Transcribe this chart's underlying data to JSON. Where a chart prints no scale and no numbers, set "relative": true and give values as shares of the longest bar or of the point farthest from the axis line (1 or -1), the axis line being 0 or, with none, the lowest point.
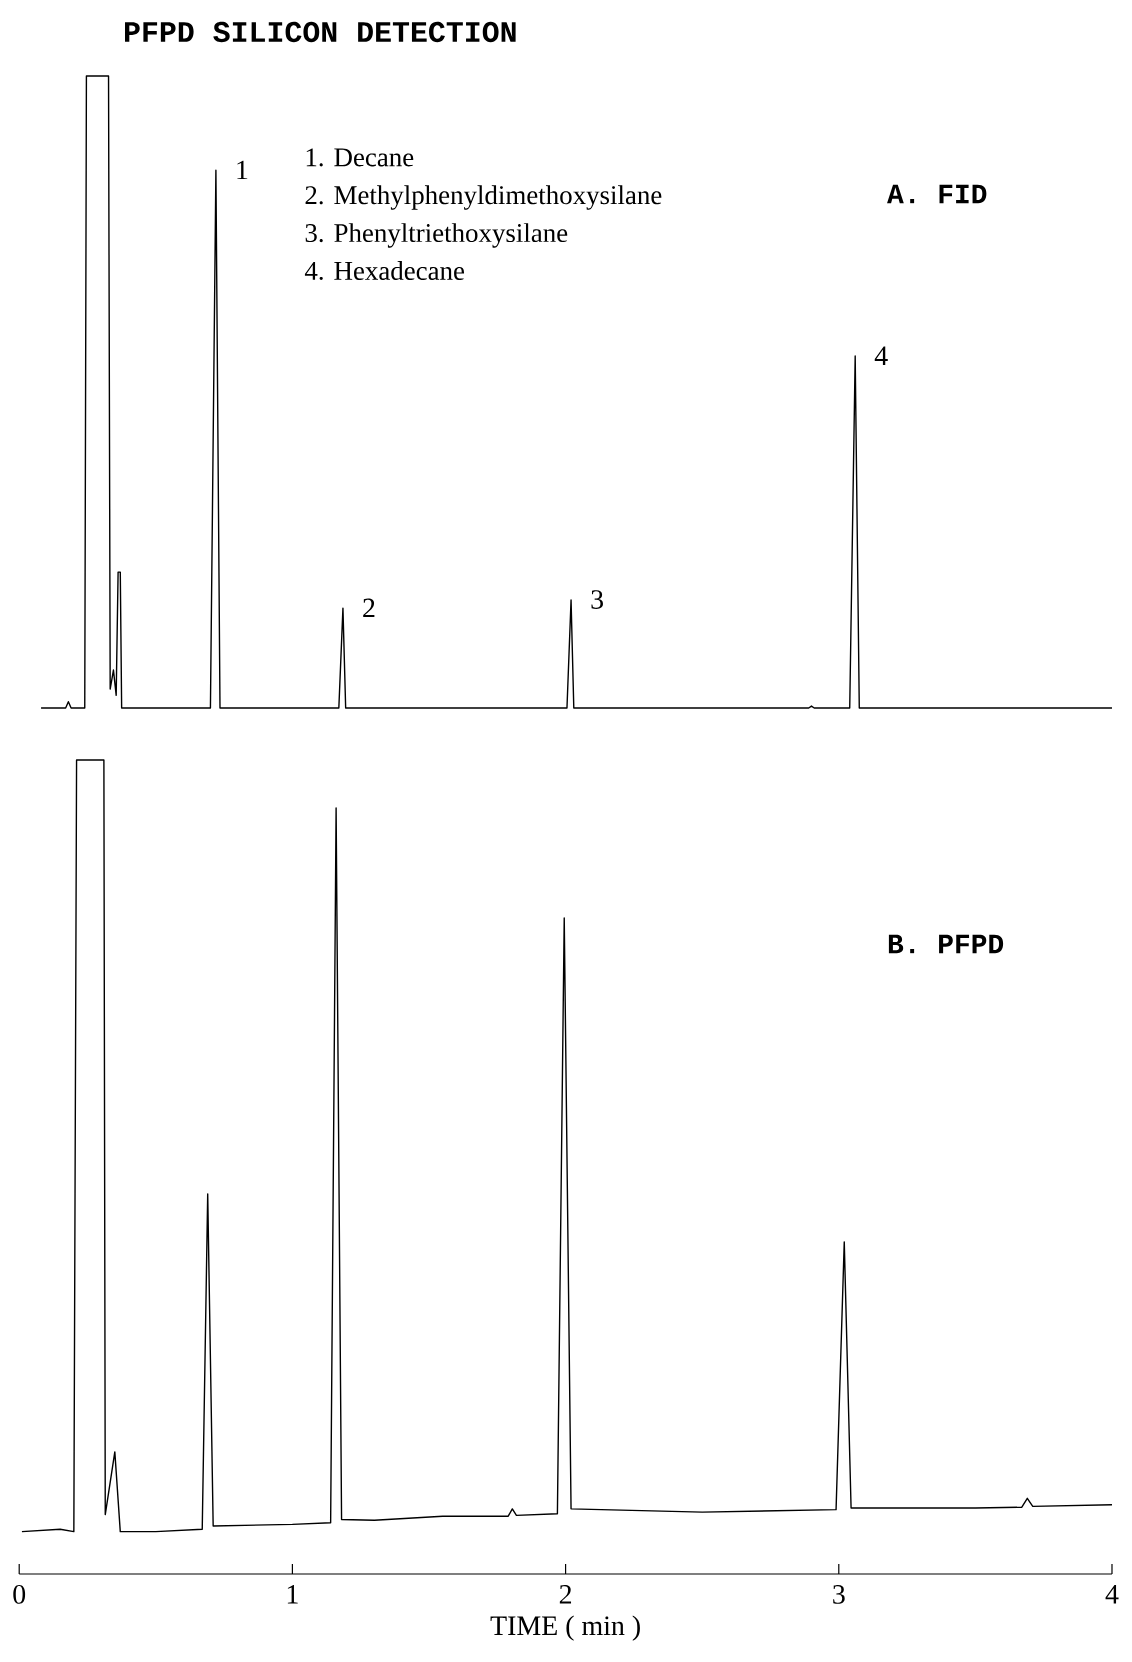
{
  "chart_data": [
    {
      "type": "line",
      "title": "PFPD SILICON DETECTION",
      "subtitle": "A. FID",
      "relative": true,
      "xlim": [
        0,
        4
      ],
      "tick_labels": false,
      "color": "#000000",
      "x": [
        0.08,
        0.17,
        0.18,
        0.19,
        0.24,
        0.246,
        0.327,
        0.333,
        0.345,
        0.355,
        0.362,
        0.37,
        0.375,
        0.7,
        0.72,
        0.735,
        1.17,
        1.185,
        1.195,
        2.005,
        2.02,
        2.03,
        2.89,
        2.9,
        2.91,
        3.04,
        3.06,
        3.075,
        4.0
      ],
      "values": [
        0,
        0,
        0.01,
        0,
        0,
        1,
        1,
        0.03,
        0.06,
        0.02,
        0.215,
        0.215,
        0,
        0,
        0.851,
        0,
        0,
        0.158,
        0,
        0,
        0.171,
        0,
        0,
        0.003,
        0,
        0,
        0.557,
        0,
        0
      ],
      "annotations": [
        "1. Decane",
        "2. Methylphenyldimethoxysilane",
        "3. Phenyltriethoxysilane",
        "4. Hexadecane",
        {
          "text": "1",
          "x": 0.72,
          "y": 0.851
        },
        {
          "text": "2",
          "x": 1.185,
          "y": 0.158
        },
        {
          "text": "3",
          "x": 2.02,
          "y": 0.171
        },
        {
          "text": "4",
          "x": 3.06,
          "y": 0.557
        }
      ]
    },
    {
      "type": "line",
      "title": "B. PFPD",
      "xlabel": "TIME  ( min )",
      "relative": true,
      "xlim": [
        0,
        4
      ],
      "xticks": [
        0,
        1,
        2,
        3,
        4
      ],
      "tick_labels": "x",
      "color": "#000000",
      "x": [
        0.01,
        0.15,
        0.2,
        0.21,
        0.31,
        0.315,
        0.35,
        0.37,
        0.5,
        0.67,
        0.69,
        0.71,
        1.0,
        1.14,
        1.16,
        1.18,
        1.3,
        1.55,
        1.79,
        1.805,
        1.82,
        1.97,
        1.995,
        2.02,
        2.5,
        2.99,
        3.02,
        3.045,
        3.5,
        3.67,
        3.69,
        3.71,
        4.0
      ],
      "values": [
        0.052,
        0.055,
        0.052,
        1,
        1,
        0.073,
        0.15,
        0.052,
        0.052,
        0.055,
        0.467,
        0.059,
        0.061,
        0.063,
        0.941,
        0.067,
        0.066,
        0.071,
        0.071,
        0.08,
        0.072,
        0.074,
        0.806,
        0.08,
        0.076,
        0.079,
        0.408,
        0.081,
        0.081,
        0.082,
        0.093,
        0.083,
        0.085
      ]
    }
  ]
}
